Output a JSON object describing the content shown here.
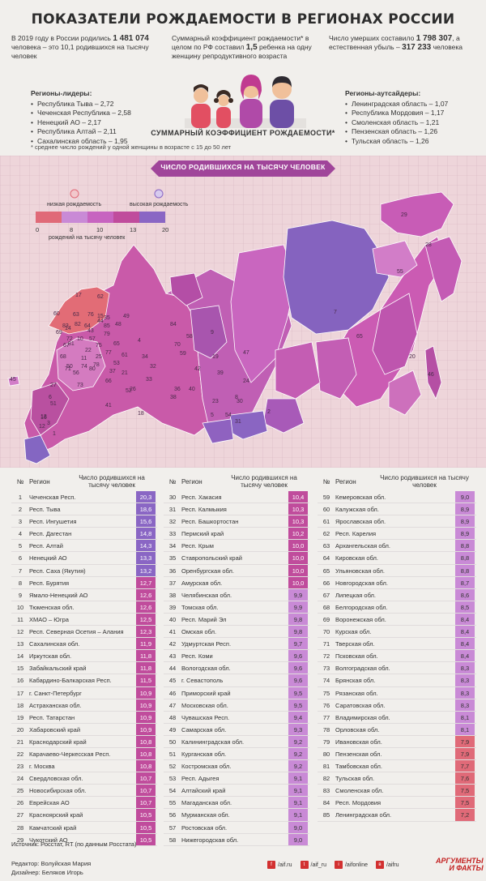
{
  "title": "ПОКАЗАТЕЛИ РОЖДАЕМОСТИ В РЕГИОНАХ РОССИИ",
  "stats": {
    "births_pre": "В 2019 году в России родились",
    "births_value": "1 481 074",
    "births_post": "человека – это 10,1 родившихся на тысячу человек",
    "tfr_pre": "Суммарный коэффициент рождаемости* в целом по РФ составил",
    "tfr_value": "1,5",
    "tfr_post": "ребенка на одну женщину репродуктивного возраста",
    "deaths_pre": "Число умерших составило",
    "deaths_value": "1 798 307",
    "deaths_mid": ", а естественная убыль –",
    "deaths_loss": "317 233",
    "deaths_post": "человека"
  },
  "leaders": {
    "title": "Регионы-лидеры:",
    "items": [
      "Республика Тыва – 2,72",
      "Чеченская Республика – 2,58",
      "Ненецкий АО – 2,17",
      "Республика Алтай – 2,11",
      "Сахалинская область – 1,95"
    ]
  },
  "outsiders": {
    "title": "Регионы-аутсайдеры:",
    "items": [
      "Ленинградская область – 1,07",
      "Республика Мордовия – 1,17",
      "Смоленская область – 1,21",
      "Пензенская область – 1,26",
      "Тульская область – 1,26"
    ]
  },
  "tfr_label": "СУММАРНЫЙ КОЭФФИЦИЕНТ РОЖДАЕМОСТИ*",
  "footnote": "* среднее число рождений у одной женщины в возрасте с 15 до 50 лет",
  "map": {
    "title": "ЧИСЛО РОДИВШИХСЯ НА ТЫСЯЧУ ЧЕЛОВЕК",
    "legend_low": "низкая рождаемость",
    "legend_high": "высокая рождаемость",
    "legend_ticks": [
      "0",
      "8",
      "10",
      "13",
      "20"
    ],
    "legend_unit": "рождений на тысячу человек",
    "colors": [
      "#e06a78",
      "#c98ad6",
      "#c764c0",
      "#c04c9c",
      "#8a66c4"
    ],
    "labels": [
      "45",
      "17",
      "62",
      "83",
      "63",
      "60",
      "69",
      "64",
      "57",
      "81",
      "10",
      "35",
      "22",
      "25",
      "75",
      "11",
      "68",
      "50",
      "56",
      "27",
      "9",
      "7",
      "28",
      "52",
      "34",
      "19",
      "46",
      "33",
      "66",
      "71",
      "73",
      "21",
      "6",
      "16",
      "41",
      "23",
      "30",
      "18",
      "51",
      "36",
      "47",
      "12",
      "70",
      "38",
      "1",
      "3",
      "40",
      "31",
      "54",
      "2",
      "5",
      "8",
      "4",
      "26",
      "29",
      "55",
      "20",
      "39",
      "42",
      "77",
      "79",
      "82",
      "80",
      "74",
      "14",
      "65",
      "72",
      "44",
      "61",
      "13",
      "53",
      "32",
      "49",
      "84",
      "24",
      "15",
      "67",
      "48",
      "58",
      "78",
      "76",
      "43",
      "37",
      "85",
      "59",
      "65"
    ]
  },
  "table": {
    "headers": {
      "num": "№",
      "region": "Регион",
      "value": "Число родившихся на тысячу человек"
    }
  },
  "chart_data": {
    "type": "table",
    "title": "ЧИСЛО РОДИВШИХСЯ НА ТЫСЯЧУ ЧЕЛОВЕК",
    "columns": [
      "№",
      "Регион",
      "Число родившихся на тысячу человек"
    ],
    "rows": [
      [
        1,
        "Чеченская Респ.",
        "20,3"
      ],
      [
        2,
        "Респ. Тыва",
        "18,6"
      ],
      [
        3,
        "Респ. Ингушетия",
        "15,6"
      ],
      [
        4,
        "Респ. Дагестан",
        "14,8"
      ],
      [
        5,
        "Респ. Алтай",
        "14,3"
      ],
      [
        6,
        "Ненецкий АО",
        "13,3"
      ],
      [
        7,
        "Респ. Саха (Якутия)",
        "13,2"
      ],
      [
        8,
        "Респ. Бурятия",
        "12,7"
      ],
      [
        9,
        "Ямало-Ненецкий АО",
        "12,6"
      ],
      [
        10,
        "Тюменская обл.",
        "12,6"
      ],
      [
        11,
        "ХМАО – Югра",
        "12,5"
      ],
      [
        12,
        "Респ. Северная Осетия – Алания",
        "12,3"
      ],
      [
        13,
        "Сахалинская обл.",
        "11,9"
      ],
      [
        14,
        "Иркутская обл.",
        "11,8"
      ],
      [
        15,
        "Забайкальский край",
        "11,8"
      ],
      [
        16,
        "Кабардино-Балкарская Респ.",
        "11,5"
      ],
      [
        17,
        "г. Санкт-Петербург",
        "10,9"
      ],
      [
        18,
        "Астраханская обл.",
        "10,9"
      ],
      [
        19,
        "Респ. Татарстан",
        "10,9"
      ],
      [
        20,
        "Хабаровский край",
        "10,9"
      ],
      [
        21,
        "Краснодарский край",
        "10,8"
      ],
      [
        22,
        "Карачаево-Черкесская Респ.",
        "10,8"
      ],
      [
        23,
        "г. Москва",
        "10,8"
      ],
      [
        24,
        "Свердловская обл.",
        "10,7"
      ],
      [
        25,
        "Новосибирская обл.",
        "10,7"
      ],
      [
        26,
        "Еврейская АО",
        "10,7"
      ],
      [
        27,
        "Красноярский край",
        "10,5"
      ],
      [
        28,
        "Камчатский край",
        "10,5"
      ],
      [
        29,
        "Чукотский АО",
        "10,5"
      ],
      [
        30,
        "Респ. Хакасия",
        "10,4"
      ],
      [
        31,
        "Респ. Калмыкия",
        "10,3"
      ],
      [
        32,
        "Респ. Башкортостан",
        "10,3"
      ],
      [
        33,
        "Пермский край",
        "10,2"
      ],
      [
        34,
        "Респ. Крым",
        "10,0"
      ],
      [
        35,
        "Ставропольский край",
        "10,0"
      ],
      [
        36,
        "Оренбургская обл.",
        "10,0"
      ],
      [
        37,
        "Амурская обл.",
        "10,0"
      ],
      [
        38,
        "Челябинская обл.",
        "9,9"
      ],
      [
        39,
        "Томская обл.",
        "9,9"
      ],
      [
        40,
        "Респ. Марий Эл",
        "9,8"
      ],
      [
        41,
        "Омская обл.",
        "9,8"
      ],
      [
        42,
        "Удмуртская Респ.",
        "9,7"
      ],
      [
        43,
        "Респ. Коми",
        "9,6"
      ],
      [
        44,
        "Вологодская обл.",
        "9,6"
      ],
      [
        45,
        "г. Севастополь",
        "9,6"
      ],
      [
        46,
        "Приморский край",
        "9,5"
      ],
      [
        47,
        "Московская обл.",
        "9,5"
      ],
      [
        48,
        "Чувашская Респ.",
        "9,4"
      ],
      [
        49,
        "Самарская обл.",
        "9,3"
      ],
      [
        50,
        "Калининградская обл.",
        "9,2"
      ],
      [
        51,
        "Курганская обл.",
        "9,2"
      ],
      [
        52,
        "Костромская обл.",
        "9,2"
      ],
      [
        53,
        "Респ. Адыгея",
        "9,1"
      ],
      [
        54,
        "Алтайский край",
        "9,1"
      ],
      [
        55,
        "Магаданская обл.",
        "9,1"
      ],
      [
        56,
        "Мурманская обл.",
        "9,1"
      ],
      [
        57,
        "Ростовская обл.",
        "9,0"
      ],
      [
        58,
        "Нижегородская обл.",
        "9,0"
      ],
      [
        59,
        "Кемеровская обл.",
        "9,0"
      ],
      [
        60,
        "Калужская обл.",
        "8,9"
      ],
      [
        61,
        "Ярославская обл.",
        "8,9"
      ],
      [
        62,
        "Респ. Карелия",
        "8,9"
      ],
      [
        63,
        "Архангельская обл.",
        "8,8"
      ],
      [
        64,
        "Кировская обл.",
        "8,8"
      ],
      [
        65,
        "Ульяновская обл.",
        "8,8"
      ],
      [
        66,
        "Новгородская обл.",
        "8,7"
      ],
      [
        67,
        "Липецкая обл.",
        "8,6"
      ],
      [
        68,
        "Белгородская обл.",
        "8,5"
      ],
      [
        69,
        "Воронежская обл.",
        "8,4"
      ],
      [
        70,
        "Курская обл.",
        "8,4"
      ],
      [
        71,
        "Тверская обл.",
        "8,4"
      ],
      [
        72,
        "Псковская обл.",
        "8,4"
      ],
      [
        73,
        "Волгоградская обл.",
        "8,3"
      ],
      [
        74,
        "Брянская обл.",
        "8,3"
      ],
      [
        75,
        "Рязанская обл.",
        "8,3"
      ],
      [
        76,
        "Саратовская обл.",
        "8,3"
      ],
      [
        77,
        "Владимирская обл.",
        "8,1"
      ],
      [
        78,
        "Орловская обл.",
        "8,1"
      ],
      [
        79,
        "Ивановская обл.",
        "7,9"
      ],
      [
        80,
        "Пензенская обл.",
        "7,9"
      ],
      [
        81,
        "Тамбовская обл.",
        "7,7"
      ],
      [
        82,
        "Тульская обл.",
        "7,6"
      ],
      [
        83,
        "Смоленская обл.",
        "7,5"
      ],
      [
        84,
        "Респ. Мордовия",
        "7,5"
      ],
      [
        85,
        "Ленинградская обл.",
        "7,2"
      ]
    ]
  },
  "source": "Источник: Росстат, RT (по данным Росстата)",
  "credits": {
    "editor": "Редактор: Волуйская Мария",
    "designer": "Дизайнер: Беляков Игорь"
  },
  "socials": [
    "/aif.ru",
    "/aif_ru",
    "/aifonline",
    "/aifru"
  ],
  "brand": {
    "line1": "АРГУМЕНТЫ",
    "line2": "И ФАКТЫ"
  }
}
